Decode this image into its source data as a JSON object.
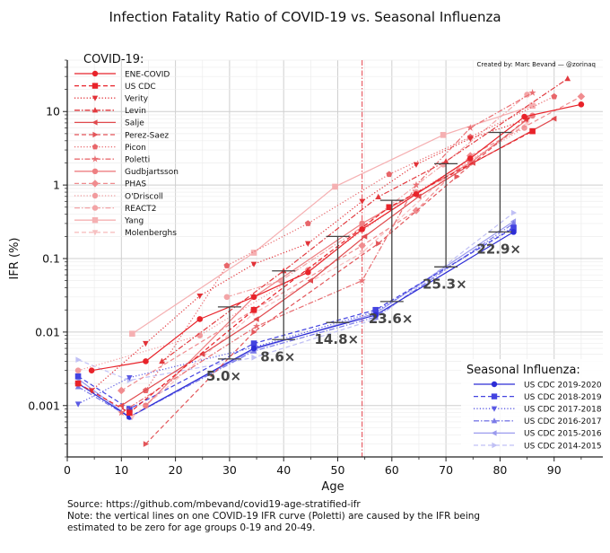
{
  "chart_data": {
    "type": "line",
    "title": "Infection Fatality Ratio of COVID-19 vs. Seasonal Influenza",
    "xlabel": "Age",
    "ylabel": "IFR (%)",
    "xscale": "linear",
    "yscale": "log",
    "xlim": [
      0,
      99
    ],
    "ylim": [
      0.0002,
      50
    ],
    "xticks": [
      0,
      10,
      20,
      30,
      40,
      50,
      60,
      70,
      80,
      90
    ],
    "xtick_labels": [
      "0",
      "10",
      "20",
      "30",
      "40",
      "50",
      "60",
      "70",
      "80",
      "90"
    ],
    "yticks": [
      0.001,
      0.01,
      0.1,
      1,
      10
    ],
    "ytick_labels": [
      "0.001",
      "0.01",
      "0.1",
      "1",
      "10"
    ],
    "grid": true,
    "credit": "Created by: Marc Bevand — @zorinaq",
    "legends": [
      {
        "title": "COVID-19:",
        "placement": "top-left"
      },
      {
        "title": "Seasonal Influenza:",
        "placement": "bottom-right"
      }
    ],
    "covid_series": [
      {
        "name": "ENE-COVID",
        "color": "#e8232a",
        "dash": "solid",
        "marker": "circle",
        "x": [
          4.5,
          14.5,
          24.5,
          34.5,
          44.5,
          54.5,
          64.5,
          74.5,
          84.5,
          95
        ],
        "y": [
          0.003,
          0.004,
          0.015,
          0.03,
          0.065,
          0.25,
          0.75,
          2.3,
          8.5,
          12.5
        ]
      },
      {
        "name": "US CDC",
        "color": "#e8232a",
        "dash": "dashed",
        "marker": "square",
        "x": [
          2,
          11.5,
          34.5,
          59.5,
          86
        ],
        "y": [
          0.002,
          0.0008,
          0.02,
          0.5,
          5.4
        ]
      },
      {
        "name": "Verity",
        "color": "#e23238",
        "dash": "dotted",
        "marker": "triangle-down",
        "x": [
          4.5,
          14.5,
          24.5,
          34.5,
          44.5,
          54.5,
          64.5,
          74.5,
          85
        ],
        "y": [
          0.0016,
          0.007,
          0.031,
          0.084,
          0.16,
          0.6,
          1.9,
          4.3,
          7.8
        ]
      },
      {
        "name": "Levin",
        "color": "#e23a3f",
        "dash": "dashdot",
        "marker": "triangle-up",
        "x": [
          17.5,
          40,
          57.5,
          70,
          92.5
        ],
        "y": [
          0.004,
          0.068,
          0.69,
          2.1,
          28
        ]
      },
      {
        "name": "Salje",
        "color": "#e04a4e",
        "dash": "solid",
        "marker": "triangle-left",
        "x": [
          10,
          25,
          35,
          45,
          55,
          65,
          75,
          90
        ],
        "y": [
          0.001,
          0.005,
          0.015,
          0.05,
          0.2,
          0.7,
          2.0,
          8.0
        ]
      },
      {
        "name": "Perez-Saez",
        "color": "#e35559",
        "dash": "dashed",
        "marker": "triangle-right",
        "x": [
          14.5,
          34.5,
          57.5,
          72,
          85
        ],
        "y": [
          0.0003,
          0.01,
          0.16,
          1.3,
          8.0
        ]
      },
      {
        "name": "Picon",
        "color": "#e8666a",
        "dash": "dotted",
        "marker": "pentagon",
        "x": [
          14.5,
          29.5,
          44.5,
          59.5,
          74.5,
          90
        ],
        "y": [
          0.0016,
          0.08,
          0.3,
          1.4,
          4.5,
          16
        ]
      },
      {
        "name": "Poletti",
        "color": "#e96f73",
        "dash": "dashdot",
        "marker": "star",
        "x": [
          10,
          35,
          54.5,
          64.5,
          74.5,
          86
        ],
        "y": [
          0.0008,
          0.012,
          0.05,
          1.0,
          6.0,
          18
        ]
      },
      {
        "name": "Gudbjartsson",
        "color": "#ee7f82",
        "dash": "solid",
        "marker": "hexagon",
        "x": [
          14.5,
          34.5,
          54.5,
          74.5,
          86
        ],
        "y": [
          0.001,
          0.03,
          0.3,
          2.0,
          8.8
        ]
      },
      {
        "name": "PHAS",
        "color": "#f08c8f",
        "dash": "dashed",
        "marker": "diamond",
        "x": [
          10,
          34.5,
          54.5,
          64.5,
          74.5,
          95
        ],
        "y": [
          0.0016,
          0.02,
          0.15,
          0.45,
          2.5,
          16
        ]
      },
      {
        "name": "O'Driscoll",
        "color": "#f19a9d",
        "dash": "dotted",
        "marker": "octagon",
        "x": [
          2,
          24.5,
          44.5,
          64.5,
          84.5
        ],
        "y": [
          0.003,
          0.009,
          0.07,
          0.8,
          6.0
        ]
      },
      {
        "name": "REACT2",
        "color": "#f3a5a7",
        "dash": "dashdot",
        "marker": "circle",
        "x": [
          29.5,
          39.5,
          54.5,
          69.5,
          85
        ],
        "y": [
          0.03,
          0.05,
          0.27,
          1.9,
          17
        ]
      },
      {
        "name": "Yang",
        "color": "#f5b0b2",
        "dash": "solid",
        "marker": "square",
        "x": [
          12,
          34.5,
          49.5,
          69.5,
          86
        ],
        "y": [
          0.0095,
          0.12,
          0.95,
          4.8,
          12
        ]
      },
      {
        "name": "Molenberghs",
        "color": "#f7c0c1",
        "dash": "dashed",
        "marker": "triangle-down",
        "x": [
          12,
          34.5,
          54.5,
          69.5,
          85
        ],
        "y": [
          0.0007,
          0.018,
          0.12,
          1.2,
          7.0
        ]
      }
    ],
    "flu_series": [
      {
        "name": "US CDC 2019-2020",
        "color": "#2d2dd6",
        "dash": "solid",
        "marker": "circle",
        "x": [
          2,
          11.5,
          34.5,
          57,
          82.5
        ],
        "y": [
          0.002,
          0.0007,
          0.006,
          0.017,
          0.23
        ]
      },
      {
        "name": "US CDC 2018-2019",
        "color": "#4343e0",
        "dash": "dashed",
        "marker": "square",
        "x": [
          2,
          11.5,
          34.5,
          57,
          82.5
        ],
        "y": [
          0.0025,
          0.0009,
          0.007,
          0.02,
          0.26
        ]
      },
      {
        "name": "US CDC 2017-2018",
        "color": "#5a5ae4",
        "dash": "dotted",
        "marker": "triangle-down",
        "x": [
          2,
          11.5,
          34.5,
          57,
          82.5
        ],
        "y": [
          0.00105,
          0.0024,
          0.0062,
          0.019,
          0.27
        ]
      },
      {
        "name": "US CDC 2016-2017",
        "color": "#7a7ae8",
        "dash": "dashdot",
        "marker": "triangle-up",
        "x": [
          2,
          11.5,
          34.5,
          57,
          82.5
        ],
        "y": [
          0.0018,
          0.0007,
          0.0055,
          0.016,
          0.3
        ]
      },
      {
        "name": "US CDC 2015-2016",
        "color": "#9a9aee",
        "dash": "solid",
        "marker": "triangle-left",
        "x": [
          2,
          11.5,
          34.5,
          57,
          82.5
        ],
        "y": [
          0.0023,
          0.0007,
          0.0058,
          0.018,
          0.32
        ]
      },
      {
        "name": "US CDC 2014-2015",
        "color": "#c0c0f5",
        "dash": "dashed",
        "marker": "triangle-right",
        "x": [
          2,
          11.5,
          34.5,
          57,
          82.5
        ],
        "y": [
          0.0042,
          0.0022,
          0.0045,
          0.015,
          0.42
        ]
      }
    ],
    "ratio_annotations": [
      {
        "x": 30,
        "covid": 0.022,
        "flu": 0.0043,
        "label": "5.0×"
      },
      {
        "x": 40,
        "covid": 0.068,
        "flu": 0.0079,
        "label": "8.6×"
      },
      {
        "x": 50,
        "covid": 0.2,
        "flu": 0.0135,
        "label": "14.8×"
      },
      {
        "x": 60,
        "covid": 0.62,
        "flu": 0.026,
        "label": "23.6×"
      },
      {
        "x": 70,
        "covid": 1.95,
        "flu": 0.077,
        "label": "25.3×"
      },
      {
        "x": 80,
        "covid": 5.2,
        "flu": 0.23,
        "label": "22.9×"
      }
    ],
    "vertical_reference_line": {
      "x": 54.5,
      "color": "#e8525a",
      "dash": "dashdot"
    }
  },
  "footnote": {
    "source": "Source: https://github.com/mbevand/covid19-age-stratified-ifr",
    "note_line1": "Note: the vertical lines on one COVID-19 IFR curve (Poletti) are caused by the IFR being",
    "note_line2": "estimated to be zero for age groups 0-19 and 20-49."
  }
}
